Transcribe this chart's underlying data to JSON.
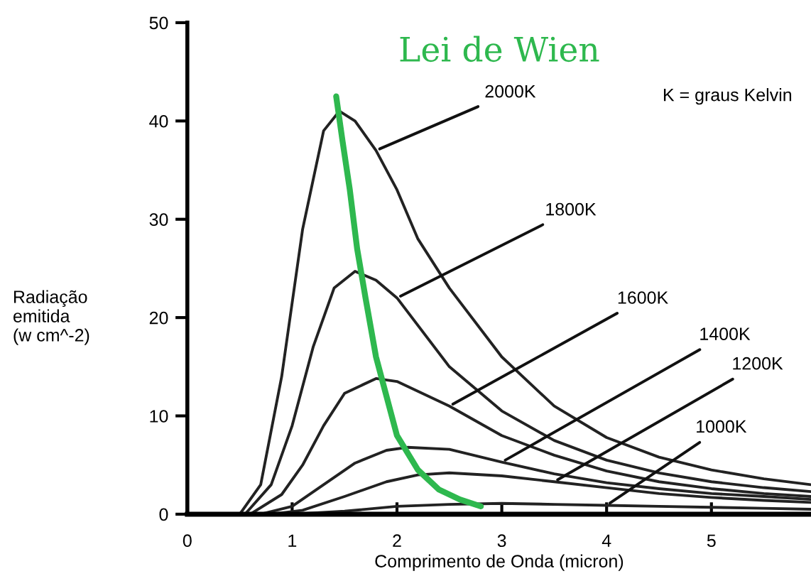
{
  "chart_data": {
    "type": "line",
    "xlabel": "Comprimento de Onda (micron)",
    "ylabel": "Radiação\nemitida\n(w cm^-2)",
    "xlim": [
      0,
      5.95
    ],
    "ylim": [
      0,
      50
    ],
    "xticks": [
      0,
      1,
      2,
      3,
      4,
      5
    ],
    "yticks": [
      0,
      10,
      20,
      30,
      40,
      50
    ],
    "grid": false,
    "legend": false,
    "marker": "none",
    "line_style": "solid",
    "series": [
      {
        "name": "2000K",
        "color": "#222222",
        "x": [
          0.5,
          0.7,
          0.9,
          1.1,
          1.3,
          1.45,
          1.6,
          1.8,
          2.0,
          2.2,
          2.5,
          3.0,
          3.5,
          4.0,
          4.5,
          5.0,
          5.5,
          5.95
        ],
        "values": [
          0,
          3,
          14,
          29,
          39,
          41,
          40,
          37,
          33,
          28,
          23,
          16,
          11,
          7.8,
          5.8,
          4.5,
          3.6,
          3.0
        ]
      },
      {
        "name": "1800K",
        "color": "#222222",
        "x": [
          0.55,
          0.8,
          1.0,
          1.2,
          1.4,
          1.6,
          1.8,
          2.0,
          2.5,
          3.0,
          3.5,
          4.0,
          4.5,
          5.0,
          5.5,
          5.95
        ],
        "values": [
          0,
          3,
          9,
          17,
          23,
          24.7,
          23.8,
          22,
          15,
          10.5,
          7.5,
          5.5,
          4.2,
          3.3,
          2.7,
          2.3
        ]
      },
      {
        "name": "1600K",
        "color": "#222222",
        "x": [
          0.6,
          0.9,
          1.1,
          1.3,
          1.5,
          1.8,
          2.0,
          2.5,
          3.0,
          3.5,
          4.0,
          4.5,
          5.0,
          5.5,
          5.95
        ],
        "values": [
          0,
          2,
          5,
          9,
          12.3,
          13.8,
          13.5,
          11,
          8,
          6,
          4.4,
          3.3,
          2.6,
          2.1,
          1.8
        ]
      },
      {
        "name": "1400K",
        "color": "#222222",
        "x": [
          0.7,
          1.0,
          1.3,
          1.6,
          1.9,
          2.1,
          2.5,
          3.0,
          3.5,
          4.0,
          4.5,
          5.0,
          5.5,
          5.95
        ],
        "values": [
          0,
          0.8,
          3,
          5.2,
          6.5,
          6.8,
          6.6,
          5.3,
          4.1,
          3.2,
          2.6,
          2.1,
          1.8,
          1.5
        ]
      },
      {
        "name": "1200K",
        "color": "#222222",
        "x": [
          0.8,
          1.1,
          1.5,
          1.9,
          2.2,
          2.5,
          3.0,
          3.5,
          4.0,
          4.5,
          5.0,
          5.5,
          5.95
        ],
        "values": [
          0,
          0.4,
          1.8,
          3.3,
          4.0,
          4.2,
          3.9,
          3.3,
          2.7,
          2.1,
          1.7,
          1.4,
          1.2
        ]
      },
      {
        "name": "1000K",
        "color": "#222222",
        "x": [
          1.0,
          1.5,
          2.0,
          2.5,
          3.0,
          3.5,
          4.0,
          4.5,
          5.0,
          5.5,
          5.95
        ],
        "values": [
          0,
          0.3,
          0.8,
          1.0,
          1.1,
          1.0,
          0.9,
          0.8,
          0.7,
          0.6,
          0.5
        ]
      },
      {
        "name": "Lei de Wien",
        "color": "#2eb84e",
        "x": [
          1.42,
          1.48,
          1.55,
          1.62,
          1.7,
          1.8,
          1.9,
          2.0,
          2.2,
          2.4,
          2.6,
          2.8
        ],
        "values": [
          42.5,
          38,
          33,
          27,
          22,
          16,
          12,
          8,
          4.5,
          2.5,
          1.5,
          0.8
        ]
      }
    ],
    "annotations": [
      "K = graus Kelvin"
    ]
  }
}
